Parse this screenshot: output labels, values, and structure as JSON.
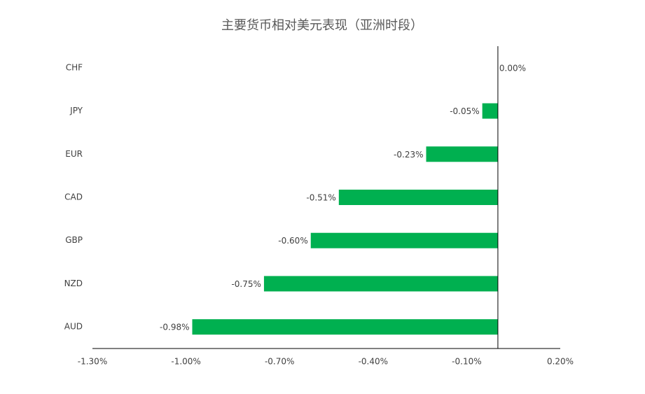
{
  "chart_data": {
    "type": "hbar",
    "title": "主要货币相对美元表现（亚洲时段）",
    "categories": [
      "CHF",
      "JPY",
      "EUR",
      "CAD",
      "GBP",
      "NZD",
      "AUD"
    ],
    "values": [
      0,
      -0.05,
      -0.23,
      -0.51,
      -0.6,
      -0.75,
      -0.98
    ],
    "value_labels": [
      "0.00%",
      "-0.05%",
      "-0.23%",
      "-0.51%",
      "-0.60%",
      "-0.75%",
      "-0.98%"
    ],
    "color": "#00b050",
    "xlim": [
      -1.3,
      0.2
    ],
    "xticks": [
      {
        "value": -1.3,
        "label": "-1.30%"
      },
      {
        "value": -1.0,
        "label": "-1.00%"
      },
      {
        "value": -0.7,
        "label": "-0.70%"
      },
      {
        "value": -0.4,
        "label": "-0.40%"
      },
      {
        "value": -0.1,
        "label": "-0.10%"
      },
      {
        "value": 0.2,
        "label": "0.20%"
      }
    ],
    "grid": false
  }
}
